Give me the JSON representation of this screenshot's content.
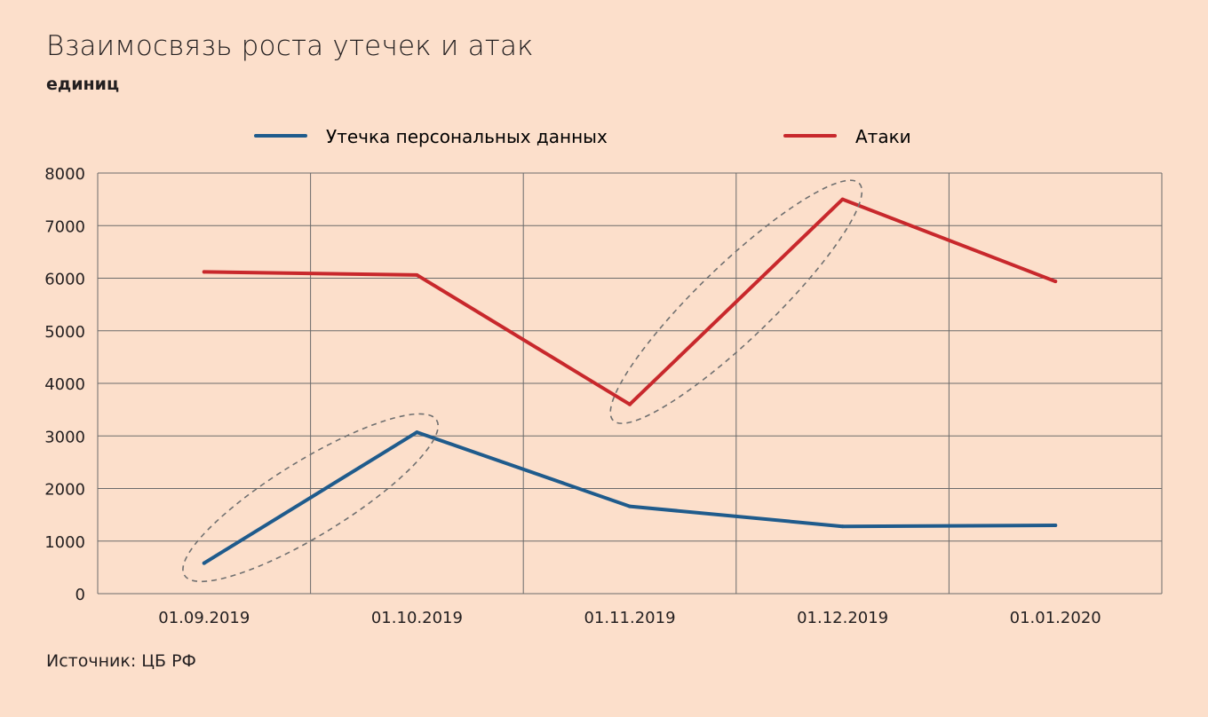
{
  "title": "Взаимосвязь роста утечек и атак",
  "subtitle": "единиц",
  "source": "Источник: ЦБ РФ",
  "colors": {
    "background": "#fcdfcb",
    "grid": "#6b6b6b",
    "leaks": "#1f5b8c",
    "attacks": "#c8282c",
    "ellipse": "#707070"
  },
  "chart_data": {
    "type": "line",
    "title": "Взаимосвязь роста утечек и атак",
    "ylabel": "",
    "xlabel": "",
    "ylim": [
      0,
      8000
    ],
    "yticks": [
      "0",
      "1000",
      "2000",
      "3000",
      "4000",
      "5000",
      "6000",
      "7000",
      "8000"
    ],
    "categories": [
      "01.09.2019",
      "01.10.2019",
      "01.11.2019",
      "01.12.2019",
      "01.01.2020"
    ],
    "series": [
      {
        "name": "Утечка персональных данных",
        "color": "#1f5b8c",
        "values": [
          580,
          3070,
          1660,
          1280,
          1300
        ]
      },
      {
        "name": "Атаки",
        "color": "#c8282c",
        "values": [
          6120,
          6060,
          3600,
          7500,
          5940
        ]
      }
    ],
    "grid": true,
    "legend_position": "top",
    "annotations": [
      {
        "type": "dashed-ellipse",
        "series": "Утечка персональных данных",
        "from": "01.09.2019",
        "to": "01.10.2019"
      },
      {
        "type": "dashed-ellipse",
        "series": "Атаки",
        "from": "01.11.2019",
        "to": "01.12.2019"
      }
    ]
  }
}
